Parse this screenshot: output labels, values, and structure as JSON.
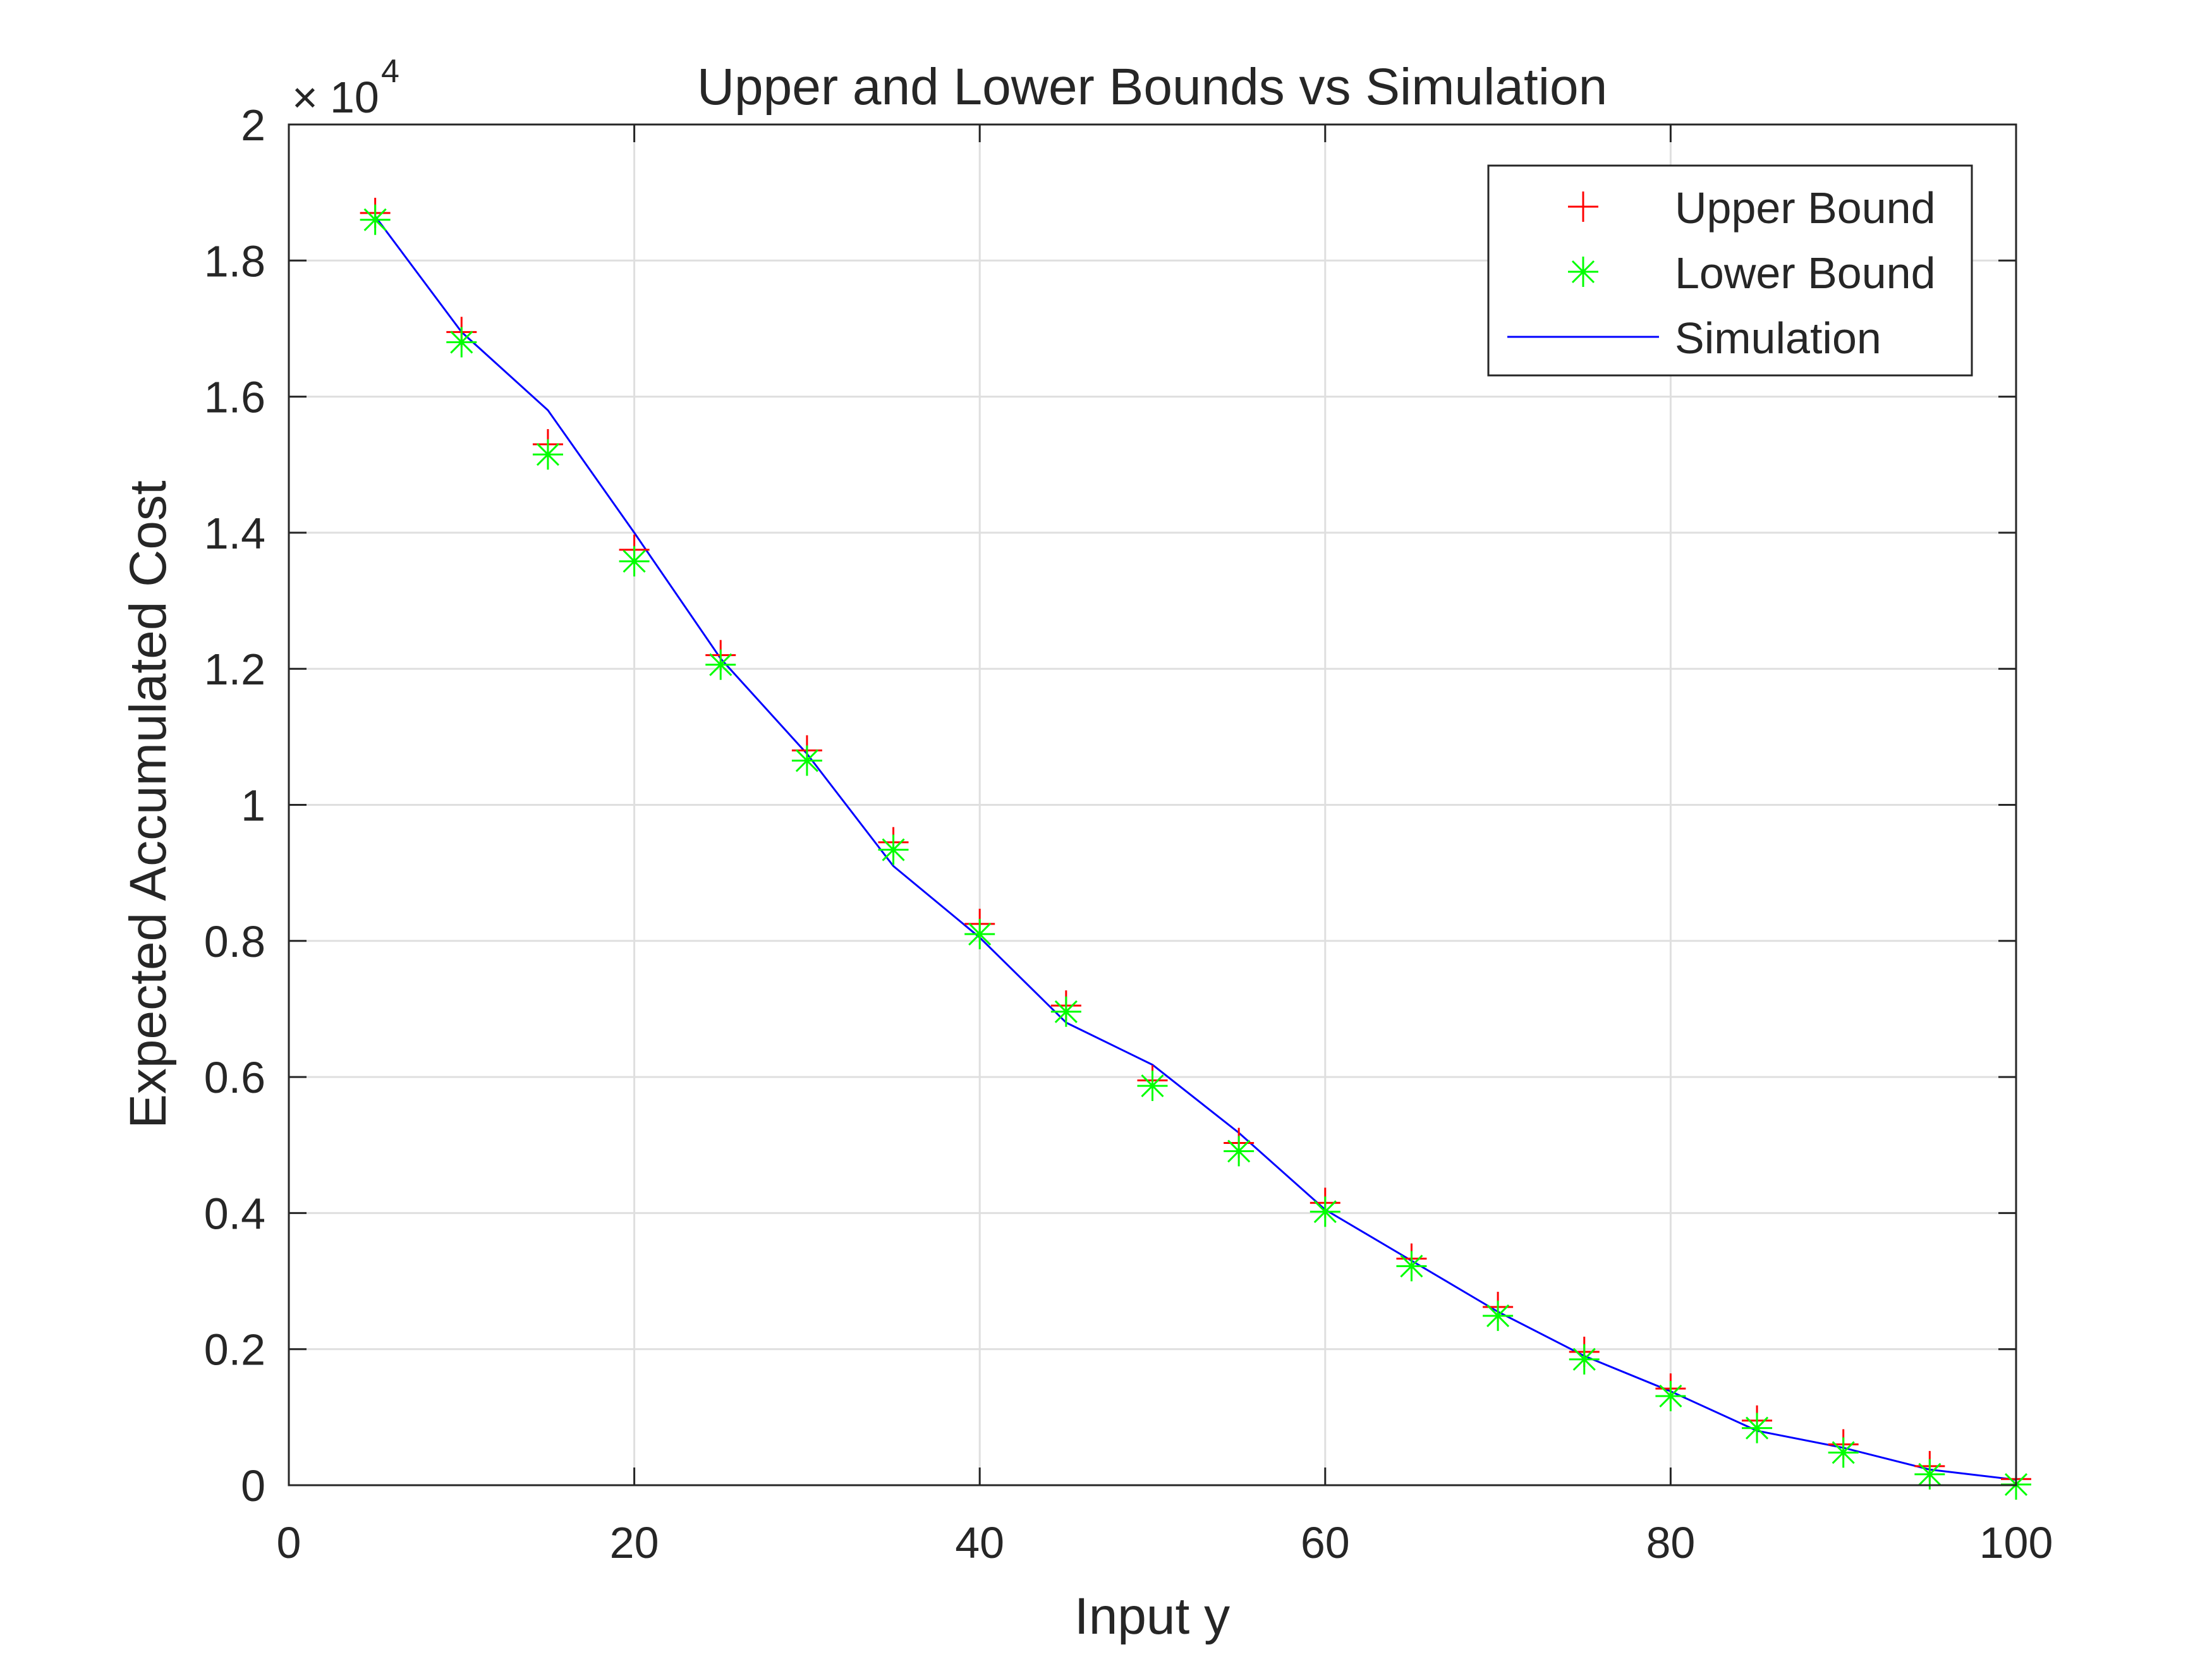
{
  "chart_data": {
    "type": "scatter",
    "title": "Upper and Lower Bounds vs Simulation",
    "xlabel": "Input y",
    "ylabel": "Expected Accumulated Cost",
    "xlim": [
      0,
      100
    ],
    "ylim": [
      0,
      20000
    ],
    "y_multiplier_base": "10",
    "y_multiplier_exp": "4",
    "grid": true,
    "legend_position": "top-right",
    "xticks": [
      0,
      20,
      40,
      60,
      80,
      100
    ],
    "xtick_labels": [
      "0",
      "20",
      "40",
      "60",
      "80",
      "100"
    ],
    "yticks": [
      0,
      2000,
      4000,
      6000,
      8000,
      10000,
      12000,
      14000,
      16000,
      18000,
      20000
    ],
    "ytick_labels": [
      "0",
      "0.2",
      "0.4",
      "0.6",
      "0.8",
      "1",
      "1.2",
      "1.4",
      "1.6",
      "1.8",
      "2"
    ],
    "x": [
      5,
      10,
      15,
      20,
      25,
      30,
      35,
      40,
      45,
      50,
      55,
      60,
      65,
      70,
      75,
      80,
      85,
      90,
      95,
      100
    ],
    "series": [
      {
        "name": "Upper Bound",
        "style": "marker-plus",
        "color": "#ff0000",
        "values": [
          18700,
          16950,
          15300,
          13750,
          12200,
          10800,
          9450,
          8250,
          7050,
          5950,
          5030,
          4150,
          3330,
          2620,
          1960,
          1420,
          950,
          600,
          280,
          90
        ]
      },
      {
        "name": "Lower Bound",
        "style": "marker-asterisk",
        "color": "#00ff00",
        "values": [
          18600,
          16800,
          15150,
          13580,
          12060,
          10650,
          9340,
          8100,
          6960,
          5870,
          4910,
          4020,
          3220,
          2490,
          1850,
          1310,
          840,
          480,
          160,
          10
        ]
      },
      {
        "name": "Simulation",
        "style": "line",
        "color": "#0000ff",
        "values": [
          18650,
          16950,
          15800,
          14000,
          12150,
          10750,
          9100,
          8050,
          6800,
          6180,
          5180,
          4050,
          3300,
          2550,
          1900,
          1380,
          800,
          550,
          230,
          80
        ]
      }
    ]
  }
}
